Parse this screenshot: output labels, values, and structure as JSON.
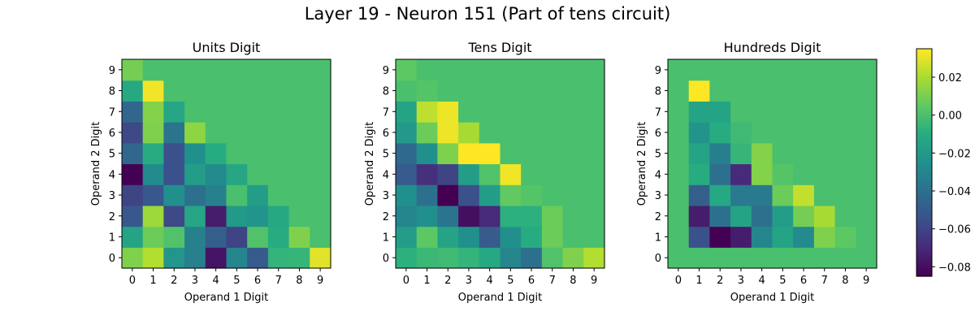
{
  "figure": {
    "title": "Layer 19 - Neuron 151 (Part of tens circuit)"
  },
  "chart_data": {
    "type": "heatmap",
    "title": "Layer 19 - Neuron 151 (Part of tens circuit)",
    "colormap": "viridis",
    "colorbar": {
      "vmin": -0.085,
      "vmax": 0.035,
      "ticks": [
        0.02,
        0.0,
        -0.02,
        -0.04,
        -0.06,
        -0.08
      ],
      "tick_labels": [
        "0.02",
        "0.00",
        "−0.02",
        "−0.04",
        "−0.06",
        "−0.08"
      ]
    },
    "x_categories": [
      "0",
      "1",
      "2",
      "3",
      "4",
      "5",
      "6",
      "7",
      "8",
      "9"
    ],
    "y_categories": [
      "0",
      "1",
      "2",
      "3",
      "4",
      "5",
      "6",
      "7",
      "8",
      "9"
    ],
    "panels": [
      {
        "title": "Units Digit",
        "xlabel": "Operand 1 Digit",
        "ylabel": "Operand 2 Digit",
        "values": [
          [
            0.012,
            0.022,
            -0.022,
            -0.032,
            -0.078,
            -0.03,
            -0.05,
            -0.006,
            -0.005,
            0.03
          ],
          [
            -0.015,
            0.008,
            0.002,
            -0.032,
            -0.048,
            -0.06,
            0.002,
            -0.01,
            0.012,
            0.0
          ],
          [
            -0.052,
            0.018,
            -0.058,
            -0.013,
            -0.075,
            -0.02,
            -0.023,
            -0.012,
            0.0,
            0.0
          ],
          [
            -0.06,
            -0.052,
            -0.025,
            -0.04,
            -0.032,
            0.0,
            -0.018,
            0.0,
            0.0,
            0.0
          ],
          [
            -0.085,
            -0.028,
            -0.055,
            -0.018,
            -0.028,
            -0.013,
            0.0,
            0.0,
            0.0,
            0.0
          ],
          [
            -0.045,
            -0.01,
            -0.055,
            -0.025,
            -0.01,
            0.0,
            0.0,
            0.0,
            0.0,
            0.0
          ],
          [
            -0.058,
            0.012,
            -0.038,
            0.015,
            0.0,
            0.0,
            0.0,
            0.0,
            0.0,
            0.0
          ],
          [
            -0.045,
            0.013,
            -0.013,
            0.0,
            0.0,
            0.0,
            0.0,
            0.0,
            0.0,
            0.0
          ],
          [
            -0.012,
            0.033,
            0.0,
            0.0,
            0.0,
            0.0,
            0.0,
            0.0,
            0.0,
            0.0
          ],
          [
            0.01,
            0.0,
            0.0,
            0.0,
            0.0,
            0.0,
            0.0,
            0.0,
            0.0,
            0.0
          ]
        ]
      },
      {
        "title": "Tens Digit",
        "xlabel": "Operand 1 Digit",
        "ylabel": "Operand 2 Digit",
        "values": [
          [
            -0.008,
            -0.004,
            -0.003,
            -0.006,
            -0.012,
            -0.03,
            -0.04,
            0.002,
            0.012,
            0.022
          ],
          [
            -0.018,
            0.005,
            -0.015,
            -0.025,
            -0.05,
            -0.025,
            -0.01,
            0.008,
            0.0,
            0.0
          ],
          [
            -0.03,
            -0.025,
            -0.038,
            -0.08,
            -0.07,
            -0.008,
            -0.008,
            0.008,
            0.0,
            0.0
          ],
          [
            -0.025,
            -0.04,
            -0.085,
            -0.055,
            -0.018,
            0.006,
            0.003,
            0.0,
            0.0,
            0.0
          ],
          [
            -0.05,
            -0.068,
            -0.06,
            -0.018,
            0.002,
            0.033,
            0.0,
            0.0,
            0.0,
            0.0
          ],
          [
            -0.043,
            -0.025,
            0.012,
            0.035,
            0.035,
            0.0,
            0.0,
            0.0,
            0.0,
            0.0
          ],
          [
            -0.02,
            0.008,
            0.032,
            0.02,
            0.0,
            0.0,
            0.0,
            0.0,
            0.0,
            0.0
          ],
          [
            -0.015,
            0.024,
            0.032,
            0.0,
            0.0,
            0.0,
            0.0,
            0.0,
            0.0,
            0.0
          ],
          [
            0.0,
            0.003,
            0.0,
            0.0,
            0.0,
            0.0,
            0.0,
            0.0,
            0.0,
            0.0
          ],
          [
            0.005,
            0.0,
            0.0,
            0.0,
            0.0,
            0.0,
            0.0,
            0.0,
            0.0,
            0.0
          ]
        ]
      },
      {
        "title": "Hundreds Digit",
        "xlabel": "Operand 1 Digit",
        "ylabel": "Operand 2 Digit",
        "values": [
          [
            0.0,
            0.0,
            0.0,
            0.0,
            0.0,
            0.0,
            0.0,
            0.0,
            0.0,
            0.0
          ],
          [
            0.0,
            -0.055,
            -0.085,
            -0.075,
            -0.03,
            -0.015,
            -0.028,
            0.012,
            0.005,
            0.0
          ],
          [
            0.0,
            -0.075,
            -0.04,
            -0.015,
            -0.04,
            -0.018,
            0.01,
            0.02,
            0.0,
            0.0
          ],
          [
            0.0,
            -0.048,
            -0.012,
            -0.035,
            -0.035,
            0.008,
            0.025,
            0.0,
            0.0,
            0.0
          ],
          [
            0.0,
            -0.01,
            -0.04,
            -0.07,
            0.013,
            0.003,
            0.0,
            0.0,
            0.0,
            0.0
          ],
          [
            0.0,
            -0.015,
            -0.033,
            -0.005,
            0.013,
            0.0,
            0.0,
            0.0,
            0.0,
            0.0
          ],
          [
            0.0,
            -0.023,
            -0.01,
            -0.003,
            0.0,
            0.0,
            0.0,
            0.0,
            0.0,
            0.0
          ],
          [
            0.0,
            -0.015,
            -0.015,
            0.0,
            0.0,
            0.0,
            0.0,
            0.0,
            0.0,
            0.0
          ],
          [
            0.0,
            0.035,
            0.0,
            0.0,
            0.0,
            0.0,
            0.0,
            0.0,
            0.0,
            0.0
          ],
          [
            0.0,
            0.0,
            0.0,
            0.0,
            0.0,
            0.0,
            0.0,
            0.0,
            0.0,
            0.0
          ]
        ]
      }
    ]
  }
}
